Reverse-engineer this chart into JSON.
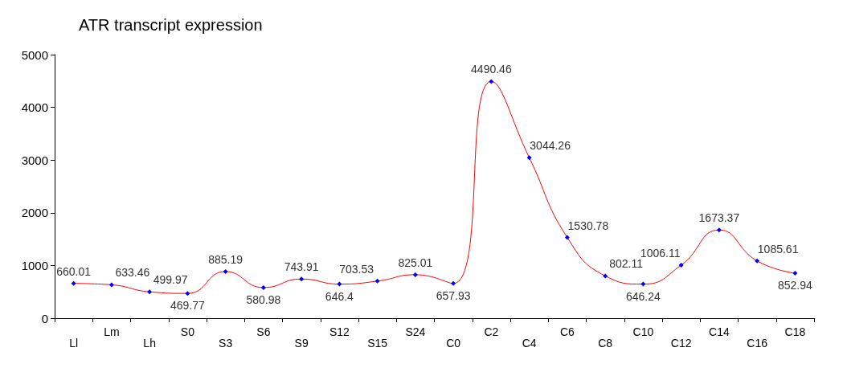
{
  "chart_data": {
    "type": "line",
    "title": "ATR transcript expression",
    "categories": [
      "Ll",
      "Lm",
      "Lh",
      "S0",
      "S3",
      "S6",
      "S9",
      "S12",
      "S15",
      "S24",
      "C0",
      "C2",
      "C4",
      "C6",
      "C8",
      "C10",
      "C12",
      "C14",
      "C16",
      "C18"
    ],
    "series": [
      {
        "color": "#ff0000",
        "colors": [
          "#0000ff",
          "#0000ff",
          "#0000ff",
          "#0000ff",
          "#0000ff",
          "#0000ff",
          "#0000ff",
          "#0000ff",
          "#0000ff",
          "#0000ff",
          "#0000ff",
          "#0000ff",
          "#0000ff",
          "#0000ff",
          "#0000ff",
          "#0000ff",
          "#0000ff",
          "#0000ff",
          "#0000ff",
          "#0000ff"
        ],
        "values": [
          660.01,
          633.46,
          499.97,
          469.77,
          885.19,
          580.98,
          743.91,
          646.4,
          703.53,
          825.01,
          657.93,
          4490.46,
          3044.26,
          1530.78,
          802.11,
          646.24,
          1006.11,
          1673.37,
          1085.61,
          852.94
        ]
      }
    ],
    "ylim": [
      0,
      5000
    ],
    "yticks": [
      0,
      1000,
      2000,
      3000,
      4000,
      5000
    ],
    "grid": false,
    "marker": "diamond",
    "line_style": "solid",
    "data_labels": true
  }
}
